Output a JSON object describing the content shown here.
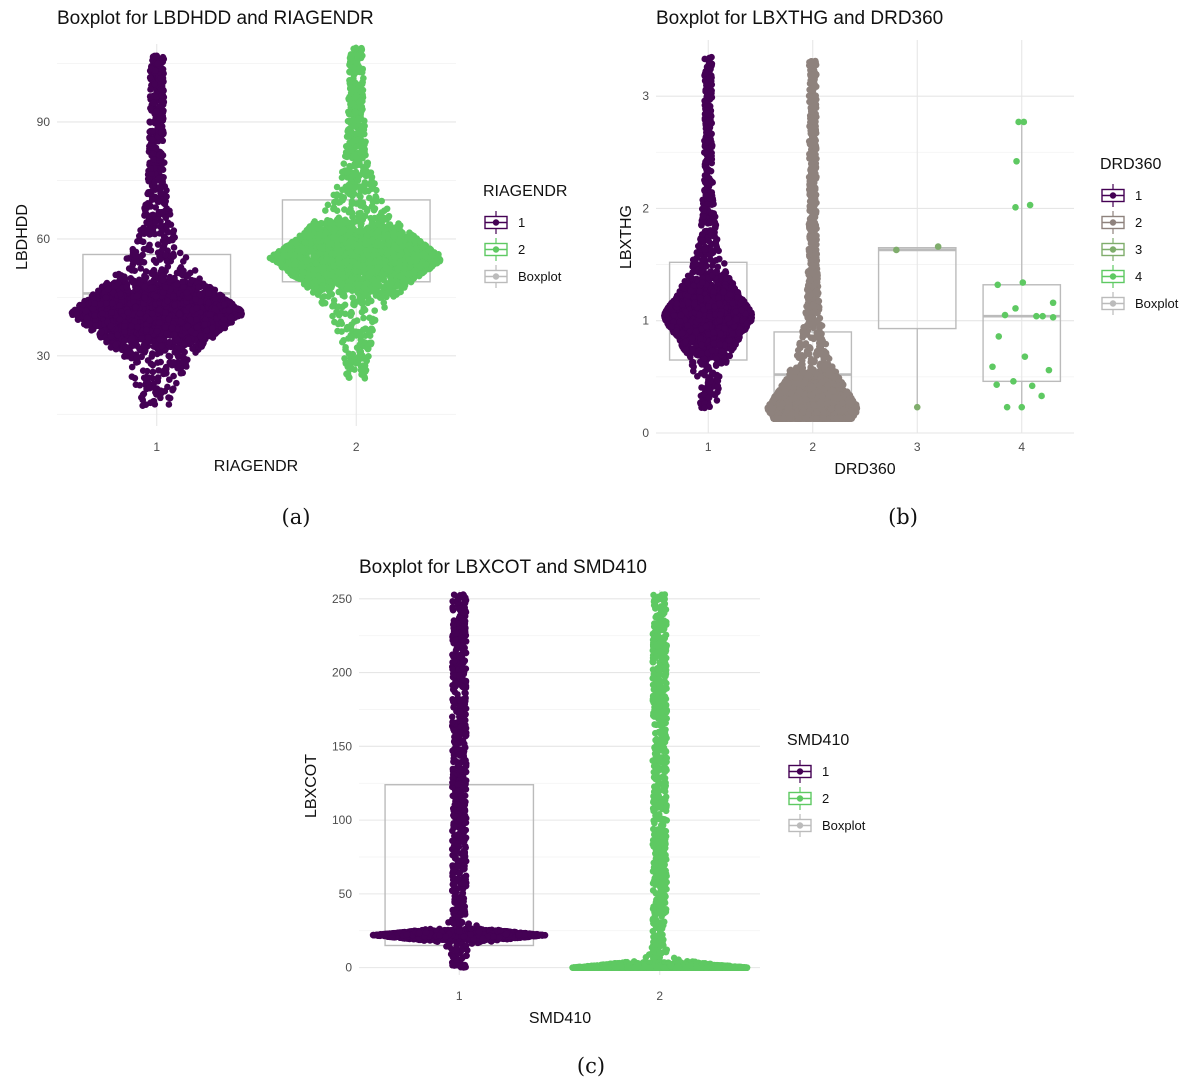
{
  "chart_data": [
    {
      "type": "boxplot",
      "title": "Boxplot for LBDHDD and RIAGENDR",
      "xlabel": "RIAGENDR",
      "ylabel": "LBDHDD",
      "categories": [
        "1",
        "2"
      ],
      "yticks": [
        "30",
        "60",
        "90"
      ],
      "ylim": [
        12,
        110
      ],
      "grid": true,
      "legend_position": "right",
      "legend_title": "RIAGENDR",
      "legend_entries": [
        "1",
        "2",
        "Boxplot"
      ],
      "series": [
        {
          "name": "1",
          "color": "#440154",
          "box": {
            "q1": 41,
            "median": 46,
            "q3": 56
          },
          "points": {
            "min": 17,
            "max": 107,
            "mode": 41,
            "width": 0.4
          }
        },
        {
          "name": "2",
          "color": "#5ec962",
          "box": {
            "q1": 49,
            "median": 57,
            "q3": 70
          },
          "points": {
            "min": 24,
            "max": 109,
            "mode": 55,
            "width": 0.4
          }
        }
      ],
      "box_color": "#bbbbbb",
      "caption": "(a)"
    },
    {
      "type": "boxplot",
      "title": "Boxplot for LBXTHG and DRD360",
      "xlabel": "DRD360",
      "ylabel": "LBXTHG",
      "categories": [
        "1",
        "2",
        "3",
        "4"
      ],
      "yticks": [
        "0",
        "1",
        "2",
        "3"
      ],
      "ylim": [
        0,
        3.5
      ],
      "grid": true,
      "legend_position": "right",
      "legend_title": "DRD360",
      "legend_entries": [
        "1",
        "2",
        "3",
        "4",
        "Boxplot"
      ],
      "series": [
        {
          "name": "1",
          "color": "#440154",
          "box": {
            "q1": 0.65,
            "median": 1.04,
            "q3": 1.52
          },
          "points": {
            "min": 0.22,
            "max": 3.35,
            "mode": 1.04,
            "width": 0.4
          }
        },
        {
          "name": "2",
          "color": "#8e827d",
          "box": {
            "q1": 0.22,
            "median": 0.52,
            "q3": 0.9
          },
          "points": {
            "min": 0.13,
            "max": 3.32,
            "mode": 0.22,
            "width": 0.4
          }
        },
        {
          "name": "3",
          "color": "#7fad6c",
          "box": {
            "q1": 0.93,
            "median": 1.63,
            "q3": 1.65
          },
          "whisker": [
            0.23,
            1.65
          ],
          "points_list": [
            [
              1.63,
              -0.2
            ],
            [
              1.66,
              0.2
            ],
            [
              0.23,
              0
            ]
          ]
        },
        {
          "name": "4",
          "color": "#5ec962",
          "box": {
            "q1": 0.46,
            "median": 1.04,
            "q3": 1.32
          },
          "whisker": [
            0.23,
            2.77
          ],
          "points_list": [
            [
              2.77,
              -0.03
            ],
            [
              2.77,
              0.02
            ],
            [
              2.42,
              -0.05
            ],
            [
              2.03,
              0.08
            ],
            [
              2.01,
              -0.06
            ],
            [
              1.34,
              0.01
            ],
            [
              1.32,
              -0.23
            ],
            [
              1.16,
              0.3
            ],
            [
              1.11,
              -0.06
            ],
            [
              1.05,
              -0.16
            ],
            [
              1.04,
              0.14
            ],
            [
              1.04,
              0.2
            ],
            [
              1.03,
              0.3
            ],
            [
              0.86,
              -0.22
            ],
            [
              0.68,
              0.03
            ],
            [
              0.59,
              -0.28
            ],
            [
              0.56,
              0.26
            ],
            [
              0.46,
              -0.08
            ],
            [
              0.43,
              -0.24
            ],
            [
              0.42,
              0.1
            ],
            [
              0.33,
              0.19
            ],
            [
              0.23,
              -0.14
            ],
            [
              0.23,
              0.0
            ]
          ]
        }
      ],
      "box_color": "#bbbbbb",
      "caption": "(b)"
    },
    {
      "type": "boxplot",
      "title": "Boxplot for LBXCOT and SMD410",
      "xlabel": "SMD410",
      "ylabel": "LBXCOT",
      "categories": [
        "1",
        "2"
      ],
      "yticks": [
        "0",
        "50",
        "100",
        "150",
        "200",
        "250"
      ],
      "ylim": [
        -5,
        256
      ],
      "grid": true,
      "legend_position": "right",
      "legend_title": "SMD410",
      "legend_entries": [
        "1",
        "2",
        "Boxplot"
      ],
      "series": [
        {
          "name": "1",
          "color": "#440154",
          "box": {
            "q1": 15,
            "median": 22,
            "q3": 124
          },
          "points": {
            "min": 0,
            "max": 253,
            "mode": 22,
            "width": 0.4
          }
        },
        {
          "name": "2",
          "color": "#5ec962",
          "box": {
            "q1": 0,
            "median": 0,
            "q3": 0
          },
          "points": {
            "min": 0,
            "max": 253,
            "mode": 0,
            "width": 0.4
          }
        }
      ],
      "box_color": "#bbbbbb",
      "caption": "(c)"
    }
  ]
}
